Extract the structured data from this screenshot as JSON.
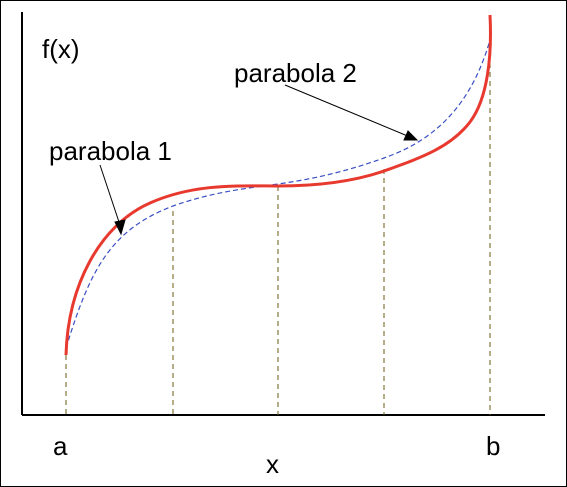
{
  "labels": {
    "y_axis": "f(x)",
    "x_axis": "x",
    "a": "a",
    "b": "b",
    "parabola_1": "parabola 1",
    "parabola_2": "parabola 2"
  },
  "colors": {
    "curve": "#e8392f",
    "approx": "#3b4fc4",
    "ordinates": "#6b5a10",
    "axes": "#000000"
  }
}
